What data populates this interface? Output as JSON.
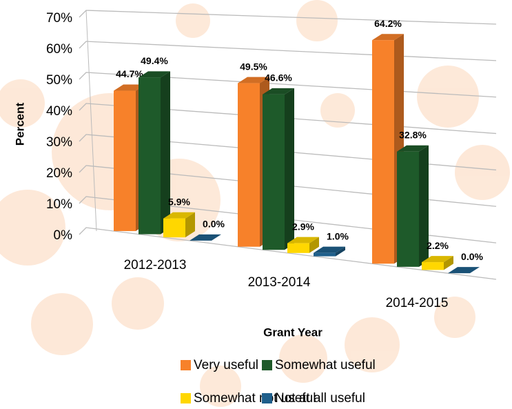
{
  "chart_data": {
    "type": "bar3d",
    "categories": [
      "2012-2013",
      "2013-2014",
      "2014-2015"
    ],
    "series": [
      {
        "name": "Very useful",
        "color": "#f7812a",
        "values": [
          44.7,
          49.5,
          64.2
        ],
        "value_labels": [
          "44.7%",
          "49.5%",
          "64.2%"
        ]
      },
      {
        "name": "Somewhat useful",
        "color": "#1e5a2a",
        "values": [
          49.4,
          46.6,
          32.8
        ],
        "value_labels": [
          "49.4%",
          "46.6%",
          "32.8%"
        ]
      },
      {
        "name": "Somewhat not useful",
        "color": "#ffd700",
        "values": [
          5.9,
          2.9,
          2.2
        ],
        "value_labels": [
          "5.9%",
          "2.9%",
          "2.2%"
        ]
      },
      {
        "name": "Not at all useful",
        "color": "#1f5f8b",
        "values": [
          0.0,
          1.0,
          0.0
        ],
        "value_labels": [
          "0.0%",
          "1.0%",
          "0.0%"
        ]
      }
    ],
    "ylim": [
      0,
      70
    ],
    "yticks": [
      {
        "value": 0,
        "label": "0%"
      },
      {
        "value": 10,
        "label": "10%"
      },
      {
        "value": 20,
        "label": "20%"
      },
      {
        "value": 30,
        "label": "30%"
      },
      {
        "value": 40,
        "label": "40%"
      },
      {
        "value": 50,
        "label": "50%"
      },
      {
        "value": 60,
        "label": "60%"
      },
      {
        "value": 70,
        "label": "70%"
      }
    ],
    "y_label": "Percent",
    "x_label": "Grant Year",
    "grid": true
  }
}
